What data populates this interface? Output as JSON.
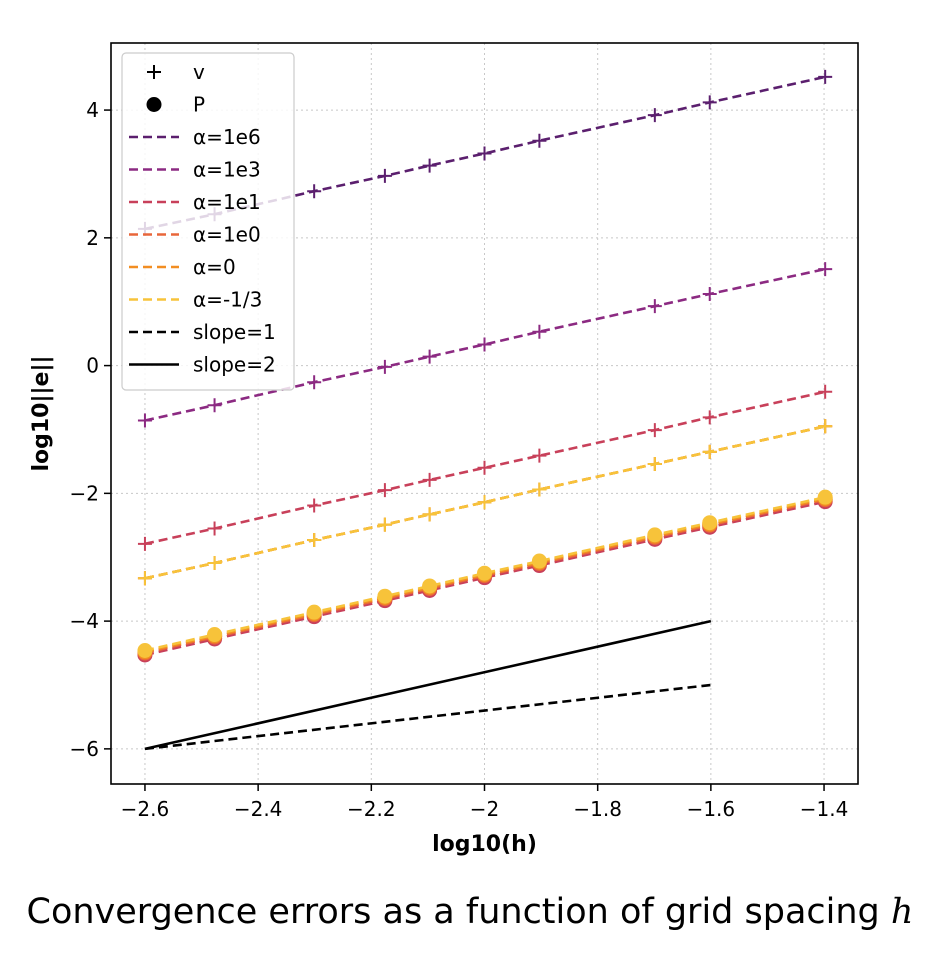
{
  "chart_data": {
    "type": "line",
    "xlabel": "log10(h)",
    "ylabel": "log10||e||",
    "xlim": [
      -2.66,
      -1.34
    ],
    "ylim": [
      -6.55,
      5.05
    ],
    "xticks": [
      -2.6,
      -2.4,
      -2.2,
      -2.0,
      -1.8,
      -1.6,
      -1.4
    ],
    "yticks": [
      -6,
      -4,
      -2,
      0,
      2,
      4
    ],
    "grid": true,
    "legend_position": "top-left",
    "x": [
      -2.6,
      -2.477,
      -2.301,
      -2.176,
      -2.097,
      -2.0,
      -1.903,
      -1.699,
      -1.602,
      -1.398
    ],
    "markers": [
      {
        "name": "v",
        "marker": "+"
      },
      {
        "name": "P",
        "marker": "circle"
      }
    ],
    "series": [
      {
        "name": "α=1e6",
        "color": "#5b1f6e",
        "v": [
          2.14,
          2.37,
          2.73,
          2.97,
          3.13,
          3.32,
          3.52,
          3.92,
          4.12,
          4.52
        ]
      },
      {
        "name": "α=1e3",
        "color": "#8c2a82",
        "v": [
          -0.86,
          -0.62,
          -0.26,
          -0.02,
          0.14,
          0.33,
          0.53,
          0.93,
          1.12,
          1.51
        ]
      },
      {
        "name": "α=1e1",
        "color": "#c8405a",
        "v": [
          -2.79,
          -2.55,
          -2.19,
          -1.95,
          -1.79,
          -1.6,
          -1.41,
          -1.01,
          -0.81,
          -0.41
        ],
        "P": [
          -4.53,
          -4.28,
          -3.93,
          -3.68,
          -3.52,
          -3.32,
          -3.13,
          -2.72,
          -2.53,
          -2.13
        ]
      },
      {
        "name": "α=1e0",
        "color": "#e8663a",
        "v": [
          -3.33,
          -3.09,
          -2.73,
          -2.49,
          -2.33,
          -2.14,
          -1.94,
          -1.54,
          -1.35,
          -0.95
        ],
        "P": [
          -4.5,
          -4.25,
          -3.9,
          -3.65,
          -3.49,
          -3.29,
          -3.1,
          -2.69,
          -2.5,
          -2.1
        ]
      },
      {
        "name": "α=0",
        "color": "#f28e22",
        "v": [
          -3.33,
          -3.09,
          -2.73,
          -2.49,
          -2.33,
          -2.14,
          -1.94,
          -1.54,
          -1.35,
          -0.95
        ],
        "P": [
          -4.48,
          -4.23,
          -3.88,
          -3.63,
          -3.47,
          -3.27,
          -3.08,
          -2.67,
          -2.48,
          -2.08
        ]
      },
      {
        "name": "α=-1/3",
        "color": "#f7c33a",
        "v": [
          -3.33,
          -3.09,
          -2.73,
          -2.49,
          -2.33,
          -2.14,
          -1.94,
          -1.54,
          -1.35,
          -0.95
        ],
        "P": [
          -4.46,
          -4.21,
          -3.86,
          -3.61,
          -3.45,
          -3.25,
          -3.06,
          -2.65,
          -2.46,
          -2.06
        ]
      }
    ],
    "reference_lines": [
      {
        "name": "slope=1",
        "style": "dashed",
        "color": "#000000",
        "x": [
          -2.6,
          -1.6
        ],
        "y": [
          -6,
          -5
        ]
      },
      {
        "name": "slope=2",
        "style": "solid",
        "color": "#000000",
        "x": [
          -2.6,
          -1.6
        ],
        "y": [
          -6,
          -4
        ]
      }
    ]
  },
  "caption": {
    "text": "Convergence errors as a function of grid spacing",
    "symbol": "h"
  }
}
